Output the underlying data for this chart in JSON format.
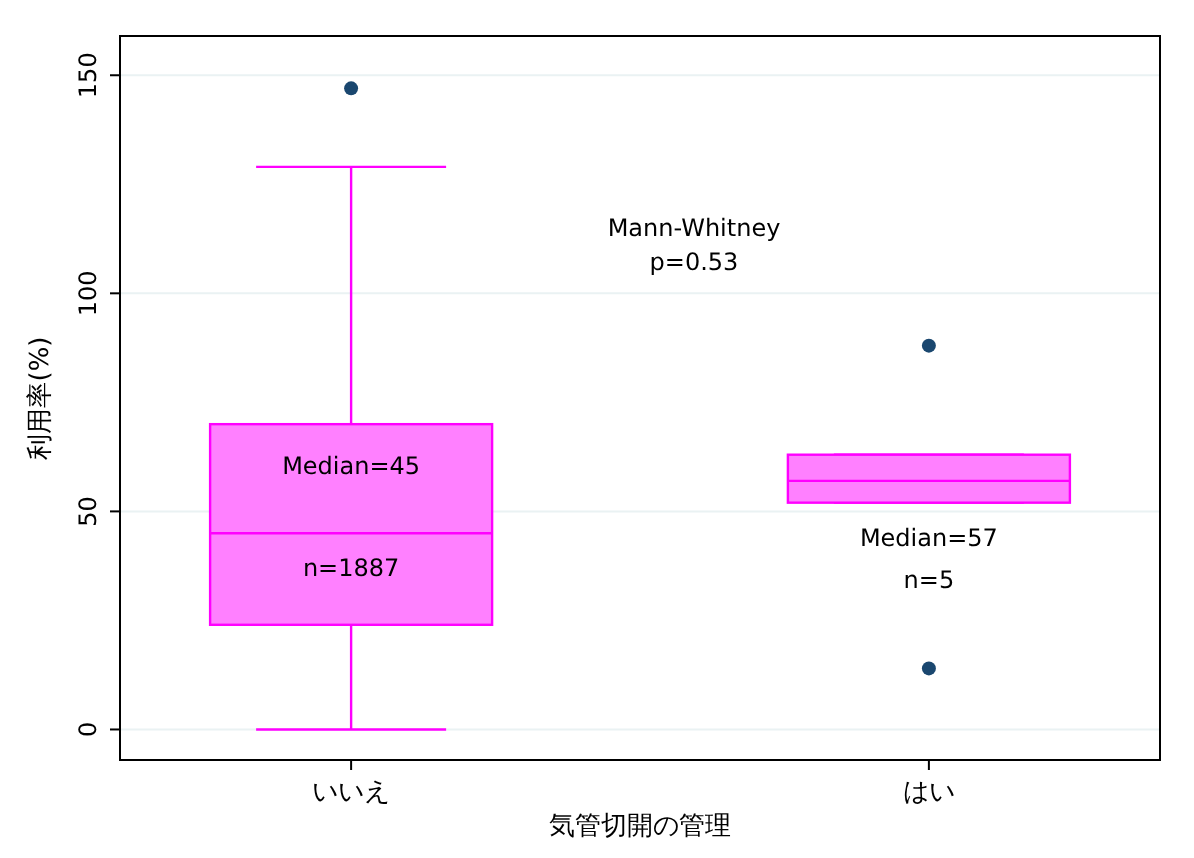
{
  "chart_data": {
    "type": "box",
    "categories": [
      "いいえ",
      "はい"
    ],
    "xlabel": "気管切開の管理",
    "ylabel": "利用率(%)",
    "boxes": [
      {
        "low": 0,
        "q1": 24,
        "median": 45,
        "q3": 70,
        "high": 129,
        "outliers": [
          147
        ]
      },
      {
        "low": 52,
        "q1": 52,
        "median": 57,
        "q3": 63,
        "high": 63,
        "outliers": [
          88,
          14
        ]
      }
    ],
    "color": "#ff80ff",
    "ylim": [
      -7,
      159
    ],
    "yticks": [
      0,
      50,
      100,
      150
    ],
    "grid": "y",
    "annotations": [
      "Mann-Whitney",
      "p=0.53",
      "Median=45",
      "n=1887",
      "Median=57",
      "n=5"
    ]
  }
}
